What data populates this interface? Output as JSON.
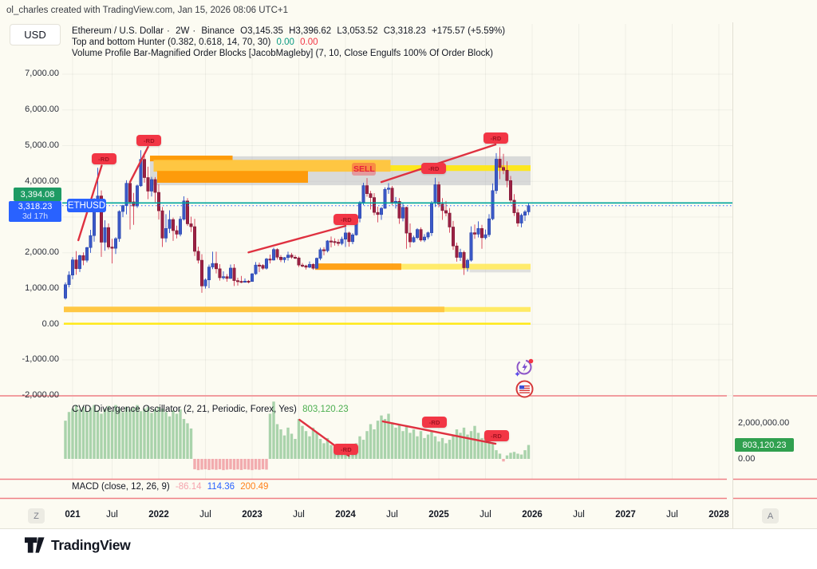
{
  "watermark": "ol_charles created with TradingView.com, Jan 15, 2026 08:06 UTC+1",
  "currency_button": "USD",
  "legend": {
    "symbol": "Ethereum / U.S. Dollar",
    "sep": "·",
    "interval": "2W",
    "exchange": "Binance",
    "o": "O3,145.35",
    "h": "H3,396.62",
    "l": "L3,053.52",
    "c": "C3,318.23",
    "change": "+175.57 (+5.59%)",
    "indicator1_name": "Top and bottom Hunter (0.382, 0.618, 14, 70, 30)",
    "indicator1_v1": "0.00",
    "indicator1_v2": "0.00",
    "indicator2_name": "Volume Profile Bar-Magnified Order Blocks [JacobMagleby] (7, 10, Close Engulfs 100% Of Order Block)"
  },
  "price_scale_badges": {
    "teal_level_label": "3,394.08",
    "last_price_label": "3,318.23",
    "countdown": "3d 17h",
    "symbol_tag": "ETHUSD"
  },
  "cvd_pane": {
    "title": "CVD Divergence Oscillator (2, 21, Periodic, Forex, Yes)",
    "value": "803,120.23",
    "scale_top": "2,000,000.00",
    "scale_zero": "0.00",
    "value_badge": "803,120.23"
  },
  "macd_pane": {
    "title": "MACD (close, 12, 26, 9)",
    "v1": "-86.14",
    "v2": "114.36",
    "v3": "200.49"
  },
  "time_axis": {
    "left_pill": "Z",
    "right_pill": "A",
    "labels": [
      {
        "text": "021",
        "bar": 2,
        "bold": true
      },
      {
        "text": "Jul",
        "bar": 13,
        "bold": false
      },
      {
        "text": "2022",
        "bar": 26,
        "bold": true
      },
      {
        "text": "Jul",
        "bar": 39,
        "bold": false
      },
      {
        "text": "2023",
        "bar": 52,
        "bold": true
      },
      {
        "text": "Jul",
        "bar": 65,
        "bold": false
      },
      {
        "text": "2024",
        "bar": 78,
        "bold": true
      },
      {
        "text": "Jul",
        "bar": 91,
        "bold": false
      },
      {
        "text": "2025",
        "bar": 104,
        "bold": true
      },
      {
        "text": "Jul",
        "bar": 117,
        "bold": false
      },
      {
        "text": "2026",
        "bar": 130,
        "bold": true
      },
      {
        "text": "Jul",
        "bar": 143,
        "bold": false
      },
      {
        "text": "2027",
        "bar": 156,
        "bold": true
      },
      {
        "text": "Jul",
        "bar": 169,
        "bold": false
      },
      {
        "text": "2028",
        "bar": 182,
        "bold": true
      }
    ]
  },
  "logo_text": "TradingView",
  "colors": {
    "up": "#3b59c7",
    "up_stroke": "#2c47ab",
    "up_wick": "#3e5ecb",
    "down": "#9c2144",
    "down_stroke": "#7d1a36",
    "down_wick": "#d94f63",
    "accent_blue": "#2962ff",
    "teal_line": "#00a59b",
    "green_badge": "#1e9b64",
    "red": "#f23645",
    "trend": "#df3140",
    "cvd_green": "#a9d3ab",
    "cvd_red": "#f2abae",
    "grid": "rgba(42,46,57,0.06)",
    "separator": "#ef7f85",
    "zone_gray": "rgba(175,178,186,0.45)",
    "zone_orange": "#ff9800",
    "zone_gold": "#ffc53d",
    "zone_yellow": "#ffe815",
    "zone_yellow_soft": "#ffe95c"
  },
  "chart_data": {
    "type": "candlestick+histogram",
    "symbol": "ETHUSD",
    "interval": "2W",
    "rd_text": "-RD",
    "price_axis": {
      "min": -2000,
      "max": 7000,
      "tick": 1000,
      "labels": [
        {
          "text": "7,000.00",
          "price": 7000
        },
        {
          "text": "6,000.00",
          "price": 6000
        },
        {
          "text": "5,000.00",
          "price": 5000
        },
        {
          "text": "4,000.00",
          "price": 4000
        },
        {
          "text": "2,000.00",
          "price": 2000
        },
        {
          "text": "1,000.00",
          "price": 1000
        },
        {
          "text": "0.00",
          "price": 0
        },
        {
          "text": "-1,000.00",
          "price": -1000
        },
        {
          "text": "-2,000.00",
          "price": -2000
        }
      ]
    },
    "levels": {
      "teal_line_price": 3394.08,
      "last_price": 3318.23
    },
    "candles": [
      [
        730,
        1170,
        690,
        1105
      ],
      [
        1105,
        1480,
        1030,
        1375
      ],
      [
        1375,
        1880,
        1260,
        1800
      ],
      [
        1800,
        2045,
        1385,
        1555
      ],
      [
        1555,
        1945,
        1460,
        1920
      ],
      [
        1920,
        2010,
        1650,
        1790
      ],
      [
        1790,
        2165,
        1730,
        2145
      ],
      [
        2145,
        2640,
        1995,
        2480
      ],
      [
        2480,
        3530,
        2310,
        3475
      ],
      [
        3475,
        4380,
        3250,
        3590
      ],
      [
        3590,
        3745,
        1885,
        2295
      ],
      [
        2295,
        2910,
        2055,
        2705
      ],
      [
        2705,
        2820,
        2095,
        2160
      ],
      [
        2160,
        2390,
        1700,
        2125
      ],
      [
        2125,
        2435,
        1965,
        2395
      ],
      [
        2395,
        3190,
        2305,
        3155
      ],
      [
        3155,
        3340,
        2995,
        3320
      ],
      [
        3320,
        4030,
        3075,
        3945
      ],
      [
        3945,
        4025,
        2650,
        3425
      ],
      [
        3425,
        3675,
        2780,
        3310
      ],
      [
        3310,
        3910,
        3255,
        3875
      ],
      [
        3875,
        4870,
        3845,
        4615
      ],
      [
        4615,
        4780,
        3960,
        4105
      ],
      [
        4105,
        4410,
        3500,
        3725
      ],
      [
        3725,
        4125,
        3575,
        4050
      ],
      [
        4050,
        4120,
        3415,
        3690
      ],
      [
        3690,
        3920,
        2930,
        3175
      ],
      [
        3175,
        3280,
        2160,
        2410
      ],
      [
        2410,
        3080,
        2295,
        2680
      ],
      [
        2680,
        3190,
        2550,
        2930
      ],
      [
        2930,
        2985,
        2330,
        2620
      ],
      [
        2620,
        2760,
        2400,
        2520
      ],
      [
        2520,
        3020,
        2460,
        2940
      ],
      [
        2940,
        3580,
        2900,
        3450
      ],
      [
        3450,
        3530,
        2750,
        2810
      ],
      [
        2810,
        3010,
        2580,
        2730
      ],
      [
        2730,
        2950,
        1910,
        2040
      ],
      [
        2040,
        2170,
        1700,
        1790
      ],
      [
        1790,
        1960,
        880,
        1070
      ],
      [
        1070,
        1280,
        995,
        1240
      ],
      [
        1240,
        1670,
        1010,
        1600
      ],
      [
        1600,
        2030,
        1540,
        1700
      ],
      [
        1700,
        2030,
        1420,
        1550
      ],
      [
        1550,
        1680,
        1220,
        1300
      ],
      [
        1300,
        1480,
        1250,
        1330
      ],
      [
        1330,
        1400,
        1190,
        1280
      ],
      [
        1280,
        1670,
        1270,
        1570
      ],
      [
        1570,
        1680,
        1070,
        1220
      ],
      [
        1220,
        1300,
        1080,
        1200
      ],
      [
        1200,
        1350,
        1150,
        1190
      ],
      [
        1190,
        1280,
        1160,
        1205
      ],
      [
        1205,
        1235,
        1140,
        1195
      ],
      [
        1195,
        1430,
        1190,
        1410
      ],
      [
        1410,
        1740,
        1380,
        1655
      ],
      [
        1655,
        1725,
        1460,
        1645
      ],
      [
        1645,
        1680,
        1520,
        1565
      ],
      [
        1565,
        1855,
        1530,
        1825
      ],
      [
        1825,
        1950,
        1700,
        1795
      ],
      [
        1795,
        2140,
        1780,
        2090
      ],
      [
        2090,
        2125,
        1810,
        1875
      ],
      [
        1875,
        1935,
        1740,
        1805
      ],
      [
        1805,
        1880,
        1720,
        1865
      ],
      [
        1865,
        2030,
        1780,
        1935
      ],
      [
        1935,
        1995,
        1830,
        1875
      ],
      [
        1875,
        1935,
        1820,
        1855
      ],
      [
        1855,
        1895,
        1600,
        1655
      ],
      [
        1655,
        1715,
        1590,
        1635
      ],
      [
        1635,
        1665,
        1530,
        1595
      ],
      [
        1595,
        1755,
        1570,
        1675
      ],
      [
        1675,
        1705,
        1520,
        1565
      ],
      [
        1565,
        1865,
        1540,
        1845
      ],
      [
        1845,
        2140,
        1790,
        2085
      ],
      [
        2085,
        2155,
        1930,
        2055
      ],
      [
        2055,
        2355,
        2010,
        2330
      ],
      [
        2330,
        2455,
        2150,
        2315
      ],
      [
        2315,
        2405,
        2200,
        2295
      ],
      [
        2295,
        2380,
        2190,
        2260
      ],
      [
        2260,
        2450,
        2210,
        2380
      ],
      [
        2380,
        2720,
        2160,
        2555
      ],
      [
        2555,
        2590,
        2170,
        2310
      ],
      [
        2310,
        2550,
        2240,
        2500
      ],
      [
        2500,
        2990,
        2480,
        2965
      ],
      [
        2965,
        3450,
        2850,
        3410
      ],
      [
        3410,
        3960,
        3330,
        3880
      ],
      [
        3880,
        4090,
        3570,
        3655
      ],
      [
        3655,
        3730,
        3210,
        3545
      ],
      [
        3545,
        3670,
        3050,
        3130
      ],
      [
        3130,
        3290,
        2850,
        3070
      ],
      [
        3070,
        3280,
        2920,
        3245
      ],
      [
        3245,
        3830,
        3230,
        3775
      ],
      [
        3775,
        3950,
        3650,
        3810
      ],
      [
        3810,
        3870,
        3330,
        3395
      ],
      [
        3395,
        3560,
        3240,
        3440
      ],
      [
        3440,
        3530,
        2810,
        2970
      ],
      [
        2970,
        3400,
        2880,
        3270
      ],
      [
        3270,
        3290,
        2110,
        2550
      ],
      [
        2550,
        2820,
        2150,
        2305
      ],
      [
        2305,
        2480,
        2280,
        2425
      ],
      [
        2425,
        2690,
        2380,
        2650
      ],
      [
        2650,
        2710,
        2310,
        2355
      ],
      [
        2355,
        2520,
        2300,
        2440
      ],
      [
        2440,
        2590,
        2380,
        2560
      ],
      [
        2560,
        3450,
        2470,
        3390
      ],
      [
        3390,
        4100,
        3280,
        3905
      ],
      [
        3905,
        3990,
        3270,
        3360
      ],
      [
        3360,
        3530,
        2920,
        3180
      ],
      [
        3180,
        3450,
        3020,
        3110
      ],
      [
        3110,
        3250,
        2560,
        2720
      ],
      [
        2720,
        2890,
        2080,
        2190
      ],
      [
        2190,
        2280,
        1750,
        1870
      ],
      [
        1870,
        2110,
        1770,
        2010
      ],
      [
        2010,
        2060,
        1380,
        1580
      ],
      [
        1580,
        1830,
        1470,
        1790
      ],
      [
        1790,
        2740,
        1750,
        2560
      ],
      [
        2560,
        2790,
        2390,
        2520
      ],
      [
        2520,
        2880,
        2430,
        2680
      ],
      [
        2680,
        2780,
        2110,
        2420
      ],
      [
        2420,
        2650,
        2370,
        2505
      ],
      [
        2505,
        3080,
        2440,
        2950
      ],
      [
        2950,
        3940,
        2910,
        3740
      ],
      [
        3740,
        4790,
        3650,
        4620
      ],
      [
        4620,
        4955,
        4060,
        4390
      ],
      [
        4390,
        4770,
        4200,
        4310
      ],
      [
        4310,
        4560,
        3830,
        4020
      ],
      [
        4020,
        4150,
        3380,
        3470
      ],
      [
        3470,
        3640,
        3030,
        3120
      ],
      [
        3120,
        3230,
        2730,
        2830
      ],
      [
        2830,
        3100,
        2710,
        3050
      ],
      [
        3050,
        3195,
        2890,
        3145
      ],
      [
        3145.35,
        3396.62,
        3053.52,
        3318.23
      ]
    ],
    "zones": [
      {
        "i0": 24,
        "i1": 130,
        "p0": 3890,
        "p1": 4700,
        "color": "zone_gray",
        "opacity": 1
      },
      {
        "i0": 24,
        "i1": 47,
        "p0": 4560,
        "p1": 4720,
        "color": "zone_orange",
        "opacity": 0.95
      },
      {
        "i0": 25,
        "i1": 91,
        "p0": 4270,
        "p1": 4600,
        "color": "zone_gold",
        "opacity": 0.97
      },
      {
        "i0": 91,
        "i1": 130,
        "p0": 4290,
        "p1": 4450,
        "color": "zone_yellow",
        "opacity": 0.95
      },
      {
        "i0": 26,
        "i1": 68,
        "p0": 3960,
        "p1": 4290,
        "color": "zone_orange",
        "opacity": 0.95
      },
      {
        "i0": 70,
        "i1": 94,
        "p0": 1520,
        "p1": 1700,
        "color": "zone_orange",
        "opacity": 0.9
      },
      {
        "i0": 94,
        "i1": 130,
        "p0": 1530,
        "p1": 1690,
        "color": "zone_yellow_soft",
        "opacity": 0.9
      },
      {
        "i0": 113,
        "i1": 130,
        "p0": 1450,
        "p1": 1530,
        "color": "zone_gray",
        "opacity": 0.8
      },
      {
        "i0": 0,
        "i1": 106,
        "p0": 335,
        "p1": 490,
        "color": "zone_gold",
        "opacity": 0.97
      },
      {
        "i0": 106,
        "i1": 130,
        "p0": 345,
        "p1": 480,
        "color": "zone_yellow_soft",
        "opacity": 0.95
      },
      {
        "i0": 0,
        "i1": 130,
        "p0": -15,
        "p1": 40,
        "color": "zone_yellow",
        "opacity": 1
      }
    ],
    "trend_lines": [
      {
        "b1": 3.6,
        "p1": 2350,
        "b2": 10.1,
        "p2": 4440
      },
      {
        "b1": 18.0,
        "p1": 3980,
        "b2": 23.0,
        "p2": 4960
      },
      {
        "b1": 51.0,
        "p1": 2010,
        "b2": 78.0,
        "p2": 2750
      },
      {
        "b1": 88.0,
        "p1": 3980,
        "b2": 119.8,
        "p2": 5030
      }
    ],
    "rd_badges": [
      {
        "bar": 10.7,
        "price": 4630
      },
      {
        "bar": 23.3,
        "price": 5140
      },
      {
        "bar": 78.2,
        "price": 2930
      },
      {
        "bar": 102.6,
        "price": 4360
      },
      {
        "bar": 119.9,
        "price": 5210
      }
    ],
    "sell_label": {
      "text": "SELL",
      "bar": 83.2,
      "price": 4340
    },
    "cvd": {
      "values_millions": [
        2.2,
        2.7,
        2.9,
        3.1,
        2.85,
        3.0,
        2.75,
        2.95,
        3.1,
        2.8,
        2.6,
        2.9,
        3.05,
        2.8,
        3.1,
        2.9,
        2.7,
        3.0,
        2.85,
        2.95,
        3.1,
        2.75,
        2.9,
        3.0,
        2.65,
        2.85,
        3.0,
        2.9,
        2.7,
        2.45,
        2.8,
        2.6,
        2.85,
        2.3,
        2.05,
        1.75,
        -0.6,
        -0.65,
        -0.62,
        -0.6,
        -0.64,
        -0.61,
        -0.63,
        -0.6,
        -0.65,
        -0.62,
        -0.6,
        -0.63,
        -0.61,
        -0.64,
        -0.6,
        -0.62,
        -0.65,
        -0.61,
        -0.63,
        -0.6,
        -0.62,
        2.6,
        3.3,
        2.0,
        1.7,
        1.35,
        1.8,
        1.45,
        1.15,
        2.3,
        1.9,
        1.6,
        1.3,
        1.8,
        1.5,
        1.15,
        0.9,
        1.2,
        0.8,
        0.6,
        0.5,
        0.4,
        0.25,
        0.2,
        0.5,
        0.9,
        1.3,
        1.1,
        1.6,
        2.0,
        1.7,
        2.2,
        2.5,
        2.3,
        2.6,
        2.1,
        1.8,
        2.0,
        1.6,
        1.9,
        1.5,
        1.7,
        1.3,
        1.6,
        1.2,
        1.4,
        1.6,
        1.3,
        1.0,
        1.2,
        0.9,
        1.1,
        1.4,
        1.7,
        1.5,
        1.8,
        1.4,
        1.6,
        1.9,
        1.5,
        1.2,
        1.4,
        1.1,
        0.9,
        0.5,
        0.3,
        -0.15,
        0.2,
        0.35,
        0.4,
        0.3,
        0.25,
        0.5,
        0.8
      ],
      "scale_top_value": 2000000,
      "trend_lines": [
        {
          "b1": 65.2,
          "v1": 2.25,
          "b2": 78.9,
          "v2": 0.18
        },
        {
          "b1": 88.4,
          "v1": 2.16,
          "b2": 119.8,
          "v2": 0.87
        }
      ],
      "rd_badges": [
        {
          "bar": 78.2,
          "v": 0.55
        },
        {
          "bar": 102.8,
          "v": 2.11
        },
        {
          "bar": 120.0,
          "v": 1.33
        }
      ]
    }
  }
}
